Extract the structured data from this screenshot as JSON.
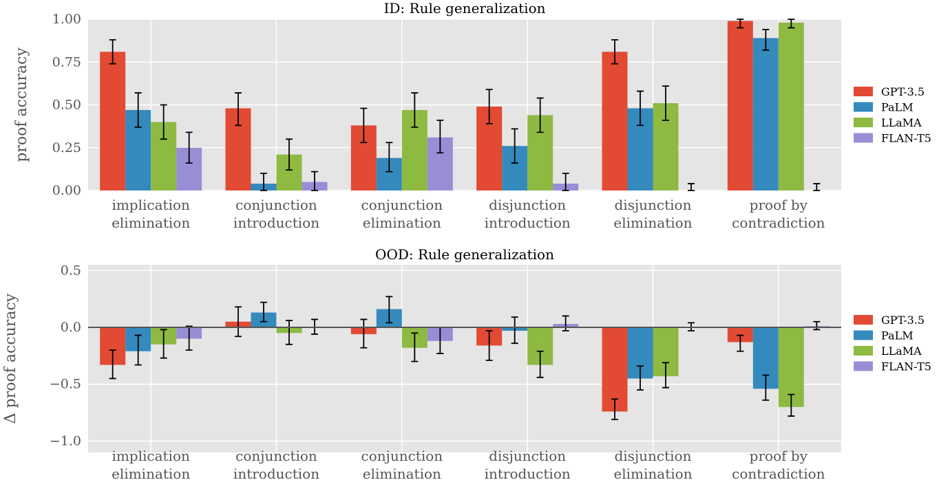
{
  "colors": {
    "background": "#E5E5E5",
    "grid": "#FFFFFF",
    "GPT-3.5": "#E24A33",
    "PaLM": "#348ABD",
    "LLaMA": "#8EBA42",
    "FLAN-T5": "#988ED5"
  },
  "chart_data": [
    {
      "type": "bar",
      "title": "ID: Rule generalization",
      "ylabel": "proof accuracy",
      "ylim": [
        0,
        1.0
      ],
      "yticks": [
        "0.00",
        "0.25",
        "0.50",
        "0.75",
        "1.00"
      ],
      "grid": true,
      "legend": "right",
      "categories": [
        [
          "implication",
          "elimination"
        ],
        [
          "conjunction",
          "introduction"
        ],
        [
          "conjunction",
          "elimination"
        ],
        [
          "disjunction",
          "introduction"
        ],
        [
          "disjunction",
          "elimination"
        ],
        [
          "proof by",
          "contradiction"
        ]
      ],
      "series": [
        {
          "name": "GPT-3.5",
          "values": [
            0.81,
            0.48,
            0.38,
            0.49,
            0.81,
            0.99
          ],
          "err_low": [
            0.74,
            0.38,
            0.28,
            0.39,
            0.74,
            0.95
          ],
          "err_high": [
            0.88,
            0.57,
            0.48,
            0.59,
            0.88,
            1.0
          ]
        },
        {
          "name": "PaLM",
          "values": [
            0.47,
            0.04,
            0.19,
            0.26,
            0.48,
            0.89
          ],
          "err_low": [
            0.37,
            0.0,
            0.11,
            0.16,
            0.38,
            0.82
          ],
          "err_high": [
            0.57,
            0.1,
            0.28,
            0.36,
            0.58,
            0.94
          ]
        },
        {
          "name": "LLaMA",
          "values": [
            0.4,
            0.21,
            0.47,
            0.44,
            0.51,
            0.98
          ],
          "err_low": [
            0.3,
            0.12,
            0.37,
            0.34,
            0.41,
            0.95
          ],
          "err_high": [
            0.5,
            0.3,
            0.57,
            0.54,
            0.61,
            1.0
          ]
        },
        {
          "name": "FLAN-T5",
          "values": [
            0.25,
            0.05,
            0.31,
            0.04,
            0.0,
            0.0
          ],
          "err_low": [
            0.16,
            0.0,
            0.22,
            0.0,
            0.0,
            0.0
          ],
          "err_high": [
            0.34,
            0.11,
            0.41,
            0.1,
            0.04,
            0.04
          ]
        }
      ]
    },
    {
      "type": "bar",
      "title": "OOD: Rule generalization",
      "ylabel": "Δ proof accuracy",
      "ylim": [
        -1.1,
        0.55
      ],
      "yticks": [
        "−1.0",
        "−0.5",
        "0.0",
        "0.5"
      ],
      "grid": true,
      "legend": "right",
      "categories": [
        [
          "implication",
          "elimination"
        ],
        [
          "conjunction",
          "introduction"
        ],
        [
          "conjunction",
          "elimination"
        ],
        [
          "disjunction",
          "introduction"
        ],
        [
          "disjunction",
          "elimination"
        ],
        [
          "proof by",
          "contradiction"
        ]
      ],
      "series": [
        {
          "name": "GPT-3.5",
          "values": [
            -0.33,
            0.05,
            -0.06,
            -0.16,
            -0.74,
            -0.13
          ],
          "err_low": [
            -0.45,
            -0.08,
            -0.18,
            -0.29,
            -0.81,
            -0.21
          ],
          "err_high": [
            -0.2,
            0.18,
            0.07,
            -0.03,
            -0.63,
            -0.07
          ]
        },
        {
          "name": "PaLM",
          "values": [
            -0.21,
            0.13,
            0.16,
            -0.03,
            -0.45,
            -0.54
          ],
          "err_low": [
            -0.33,
            0.05,
            0.04,
            -0.14,
            -0.55,
            -0.64
          ],
          "err_high": [
            -0.07,
            0.22,
            0.27,
            0.09,
            -0.34,
            -0.42
          ]
        },
        {
          "name": "LLaMA",
          "values": [
            -0.15,
            -0.05,
            -0.18,
            -0.33,
            -0.43,
            -0.7
          ],
          "err_low": [
            -0.27,
            -0.15,
            -0.3,
            -0.44,
            -0.53,
            -0.78
          ],
          "err_high": [
            -0.02,
            0.06,
            -0.05,
            -0.21,
            -0.31,
            -0.59
          ]
        },
        {
          "name": "FLAN-T5",
          "values": [
            -0.1,
            0.0,
            -0.12,
            0.03,
            0.0,
            0.01
          ],
          "err_low": [
            -0.2,
            -0.06,
            -0.23,
            -0.03,
            -0.03,
            -0.02
          ],
          "err_high": [
            0.01,
            0.07,
            0.0,
            0.1,
            0.04,
            0.05
          ]
        }
      ]
    }
  ]
}
